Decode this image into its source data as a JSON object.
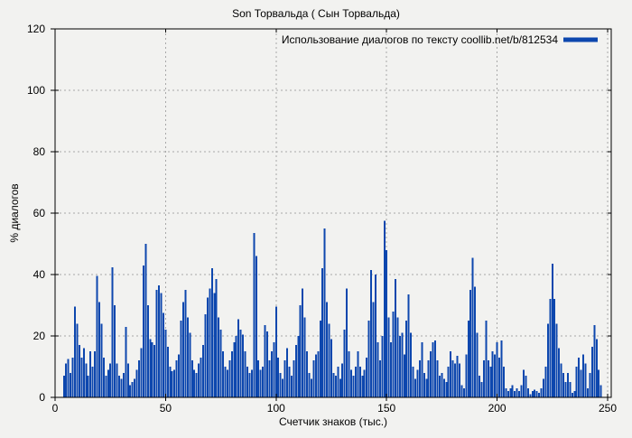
{
  "title": "Son Торвальда ( Сын Торвальда)",
  "colors": {
    "background": "#f2f2f0",
    "bar": "#0d47ae",
    "grid": "#a8a8a8",
    "axis": "#000000",
    "text": "#000000"
  },
  "chart_data": {
    "type": "bar",
    "style": "impulses",
    "title": "Son Торвальда ( Сын Торвальда)",
    "xlabel": "Счетчик знаков (тыс.)",
    "ylabel": "% диалогов",
    "legend": "Использование диалогов по тексту coollib.net/b/812534",
    "legend_position": "top-right",
    "grid": true,
    "xlim": [
      0,
      250
    ],
    "ylim": [
      0,
      120
    ],
    "xticks": [
      0,
      50,
      100,
      150,
      200,
      250
    ],
    "yticks": [
      0,
      20,
      40,
      60,
      80,
      100,
      120
    ],
    "bar_color": "#0d47ae",
    "x_start": 0,
    "x_step": 1,
    "values": [
      0,
      0,
      0,
      0,
      7,
      11,
      12.5,
      8,
      13,
      29.5,
      24,
      17,
      13,
      16,
      11,
      7,
      15,
      10,
      15,
      39.5,
      31,
      24,
      13,
      7,
      9,
      11,
      42.3,
      30,
      11,
      7,
      6,
      8,
      23,
      11,
      4,
      5,
      6,
      9,
      12,
      16,
      43,
      50,
      30,
      19,
      18,
      17,
      35,
      36.5,
      34,
      27.5,
      22,
      16.5,
      10,
      8.5,
      9,
      12,
      14,
      25,
      31,
      35,
      26,
      21,
      12,
      9,
      8,
      11,
      13,
      17,
      27,
      32.5,
      35.5,
      42,
      34,
      38.5,
      26,
      22,
      15,
      10,
      9,
      12,
      15,
      18,
      20,
      25.5,
      22,
      20.5,
      15,
      10,
      8,
      9,
      53.5,
      46,
      12,
      9,
      10,
      23.5,
      21.5,
      12,
      15,
      18,
      29.5,
      13,
      8,
      6,
      12,
      16,
      10,
      7,
      12,
      17,
      20,
      30,
      35.5,
      26,
      15,
      8,
      6,
      12,
      14,
      15,
      25,
      42,
      55,
      31,
      24,
      19,
      8,
      7,
      10,
      6,
      11,
      22,
      35.5,
      15,
      9,
      7,
      10,
      15,
      10,
      7,
      9,
      13,
      25,
      41.5,
      31,
      40,
      18,
      12,
      20,
      57.5,
      48,
      26,
      18,
      28,
      38.5,
      26,
      20,
      21,
      14,
      25,
      33.5,
      21,
      10,
      6,
      9,
      12,
      18,
      8,
      6,
      12,
      15,
      18,
      18.5,
      12,
      7,
      8,
      6,
      5,
      10,
      15,
      12,
      11,
      13.5,
      11,
      4,
      3,
      14,
      25,
      35,
      45.5,
      36,
      21,
      7,
      5,
      12,
      25,
      12,
      10,
      15,
      14,
      18,
      13,
      18.5,
      10,
      3,
      2,
      3,
      4,
      2,
      3,
      2,
      4,
      9,
      7,
      3,
      1,
      2,
      2.5,
      2,
      1.5,
      3,
      6,
      10,
      24,
      32,
      43.5,
      32,
      24,
      16,
      11,
      8,
      5,
      8,
      5,
      1.5,
      2,
      10,
      13,
      9,
      14,
      11,
      3,
      8,
      16.5,
      23.5,
      19,
      9,
      4,
      0,
      0,
      0
    ]
  }
}
